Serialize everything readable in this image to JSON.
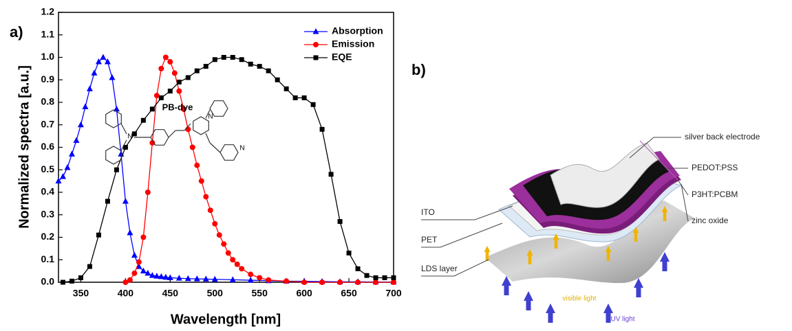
{
  "chart_data": {
    "type": "line",
    "panel_label": "a)",
    "x_label": "Wavelength [nm]",
    "y_label": "Normalized spectra [a.u.]",
    "xlim": [
      325,
      700
    ],
    "xticks": [
      350,
      400,
      450,
      500,
      550,
      600,
      650,
      700
    ],
    "ylim": [
      0,
      1.2
    ],
    "yticks": [
      {
        "value": 0,
        "label": "0.0"
      },
      0.1,
      0.2,
      0.3,
      0.4,
      0.5,
      0.6,
      0.7,
      0.8,
      0.9,
      {
        "value": 1,
        "label": "1.0"
      },
      1.1,
      1.2
    ],
    "legend": "upper right",
    "series": [
      {
        "name": "Absorption",
        "color": "#0000ff",
        "marker": "triangle",
        "x": [
          325,
          330,
          335,
          340,
          345,
          350,
          355,
          360,
          365,
          370,
          375,
          380,
          385,
          390,
          395,
          400,
          405,
          410,
          415,
          420,
          425,
          430,
          435,
          440,
          445,
          450,
          460,
          470,
          480,
          490,
          500,
          520,
          540,
          560,
          580,
          600,
          620,
          640,
          660,
          680,
          700
        ],
        "values": [
          0.45,
          0.47,
          0.51,
          0.57,
          0.63,
          0.7,
          0.78,
          0.86,
          0.93,
          0.98,
          1.0,
          0.98,
          0.91,
          0.77,
          0.57,
          0.36,
          0.22,
          0.12,
          0.07,
          0.05,
          0.04,
          0.03,
          0.027,
          0.025,
          0.022,
          0.02,
          0.018,
          0.016,
          0.015,
          0.014,
          0.013,
          0.011,
          0.009,
          0.007,
          0.005,
          0.004,
          0.003,
          0.002,
          0.002,
          0.001,
          0.001
        ]
      },
      {
        "name": "Emission",
        "color": "#ff0000",
        "marker": "circle",
        "x": [
          400,
          405,
          410,
          415,
          420,
          425,
          430,
          435,
          440,
          445,
          450,
          455,
          460,
          465,
          470,
          475,
          480,
          485,
          490,
          495,
          500,
          505,
          510,
          515,
          520,
          525,
          530,
          540,
          550,
          560,
          580,
          600,
          620,
          640,
          660,
          680,
          700
        ],
        "values": [
          0,
          0.01,
          0.04,
          0.09,
          0.2,
          0.4,
          0.62,
          0.83,
          0.95,
          1.0,
          0.98,
          0.93,
          0.85,
          0.77,
          0.68,
          0.6,
          0.52,
          0.45,
          0.38,
          0.32,
          0.26,
          0.21,
          0.17,
          0.13,
          0.1,
          0.08,
          0.06,
          0.035,
          0.02,
          0.01,
          0.005,
          0,
          0,
          0,
          0,
          0,
          0
        ]
      },
      {
        "name": "EQE",
        "color": "#000000",
        "marker": "square",
        "x": [
          330,
          340,
          350,
          360,
          370,
          380,
          390,
          400,
          410,
          420,
          430,
          440,
          450,
          460,
          470,
          480,
          490,
          500,
          510,
          520,
          530,
          540,
          550,
          560,
          570,
          580,
          590,
          600,
          610,
          620,
          630,
          640,
          650,
          660,
          670,
          680,
          690,
          700
        ],
        "values": [
          0,
          0.005,
          0.02,
          0.07,
          0.21,
          0.36,
          0.5,
          0.6,
          0.66,
          0.72,
          0.77,
          0.82,
          0.85,
          0.89,
          0.91,
          0.94,
          0.96,
          0.99,
          1.0,
          1.0,
          0.99,
          0.97,
          0.96,
          0.94,
          0.9,
          0.86,
          0.82,
          0.82,
          0.79,
          0.68,
          0.48,
          0.27,
          0.13,
          0.06,
          0.03,
          0.02,
          0.02,
          0.02
        ]
      }
    ]
  },
  "diagram": {
    "panel_label": "b)",
    "molecule": "PB-dye",
    "atoms": [
      "N",
      "N",
      "N"
    ],
    "layers": [
      "silver back electrode",
      "PEDOT:PSS",
      "P3HT:PCBM",
      "zinc oxide",
      "ITO",
      "PET",
      "LDS layer"
    ],
    "visible_light": "visible light",
    "uv_light": "UV light"
  }
}
